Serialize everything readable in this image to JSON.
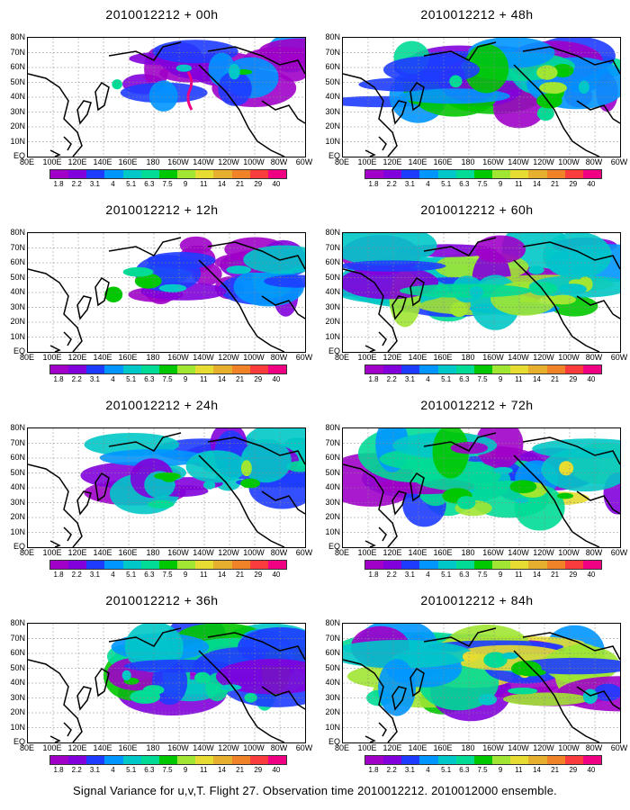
{
  "lat_labels": [
    "80N",
    "70N",
    "60N",
    "50N",
    "40N",
    "30N",
    "20N",
    "10N",
    "EQ"
  ],
  "lon_labels": [
    "80E",
    "100E",
    "120E",
    "140E",
    "160E",
    "180",
    "160W",
    "140W",
    "120W",
    "100W",
    "80W",
    "60W"
  ],
  "legend": {
    "levels": [
      "1.8",
      "2.2",
      "3.1",
      "4",
      "5.1",
      "6.3",
      "7.5",
      "9",
      "11",
      "14",
      "21",
      "29",
      "40"
    ],
    "colors": [
      "#a000c8",
      "#8200dc",
      "#1e3cff",
      "#0096ff",
      "#00c8c8",
      "#00dc96",
      "#00c800",
      "#a0e632",
      "#e6dc32",
      "#e6af2d",
      "#f08228",
      "#fa3c3c",
      "#f00082"
    ]
  },
  "panels": [
    {
      "title": "2010012212 + 00h",
      "coverage": 0.2
    },
    {
      "title": "2010012212 + 48h",
      "coverage": 0.75
    },
    {
      "title": "2010012212 + 12h",
      "coverage": 0.35
    },
    {
      "title": "2010012212 + 60h",
      "coverage": 0.85
    },
    {
      "title": "2010012212 + 24h",
      "coverage": 0.5
    },
    {
      "title": "2010012212 + 72h",
      "coverage": 0.9
    },
    {
      "title": "2010012212 + 36h",
      "coverage": 0.6
    },
    {
      "title": "2010012212 + 84h",
      "coverage": 0.95
    }
  ],
  "caption": "Signal Variance for u,v,T. Flight 27. Observation time 2010012212. 2010012000 ensemble."
}
